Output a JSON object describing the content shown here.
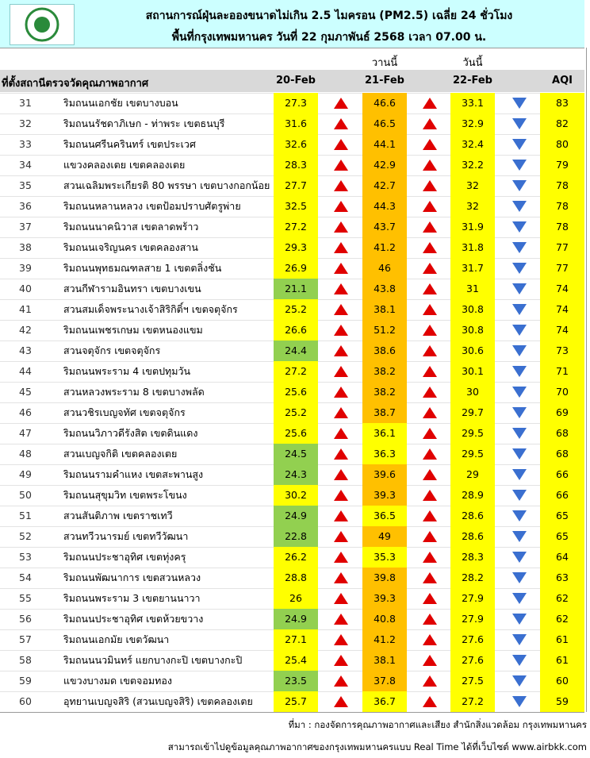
{
  "header": {
    "title": "สถานการณ์ฝุ่นละอองขนาดไม่เกิน 2.5 ไมครอน (PM2.5) เฉลี่ย 24 ชั่วโมง",
    "subtitle": "พื้นที่กรุงเทพมหานคร วันที่ 22 กุมภาพันธ์ 2568 เวลา 07.00 น.",
    "yesterday": "วานนี้",
    "today": "วันนี้"
  },
  "table": {
    "columns": [
      "ที่ตั้งสถานีตรวจวัดคุณภาพอากาศ",
      "20-Feb",
      "21-Feb",
      "22-Feb",
      "AQI"
    ],
    "rows": [
      [
        31,
        "ริมถนนเอกชัย เขตบางบอน",
        27.3,
        46.6,
        33.1,
        83
      ],
      [
        32,
        "ริมถนนรัชดาภิเษก - ท่าพระ เขตธนบุรี",
        31.6,
        46.5,
        32.9,
        82
      ],
      [
        33,
        "ริมถนนศรีนครินทร์ เขตประเวศ",
        32.6,
        44.1,
        32.4,
        80
      ],
      [
        34,
        "แขวงคลองเตย เขตคลองเตย",
        28.3,
        42.9,
        32.2,
        79
      ],
      [
        35,
        "สวนเฉลิมพระเกียรติ 80 พรรษา  เขตบางกอกน้อย",
        27.7,
        42.7,
        32,
        78
      ],
      [
        36,
        "ริมถนนหลานหลวง เขตป้อมปราบศัตรูพ่าย",
        32.5,
        44.3,
        32,
        78
      ],
      [
        37,
        "ริมถนนนาคนิวาส เขตลาดพร้าว",
        27.2,
        43.7,
        31.9,
        78
      ],
      [
        38,
        "ริมถนนเจริญนคร เขตคลองสาน",
        29.3,
        41.2,
        31.8,
        77
      ],
      [
        39,
        "ริมถนนพุทธมณฑลสาย 1 เขตตลิ่งชัน",
        26.9,
        46,
        31.7,
        77
      ],
      [
        40,
        "สวนกีฬารามอินทรา เขตบางเขน",
        21.1,
        43.8,
        31,
        74
      ],
      [
        41,
        "สวนสมเด็จพระนางเจ้าสิริกิติ์ฯ เขตจตุจักร",
        25.2,
        38.1,
        30.8,
        74
      ],
      [
        42,
        "ริมถนนเพชรเกษม เขตหนองแขม",
        26.6,
        51.2,
        30.8,
        74
      ],
      [
        43,
        "สวนจตุจักร เขตจตุจักร",
        24.4,
        38.6,
        30.6,
        73
      ],
      [
        44,
        "ริมถนนพระราม 4 เขตปทุมวัน",
        27.2,
        38.2,
        30.1,
        71
      ],
      [
        45,
        "สวนหลวงพระราม 8 เขตบางพลัด",
        25.6,
        38.2,
        30,
        70
      ],
      [
        46,
        "สวนวชิรเบญจทัศ เขตจตุจักร",
        25.2,
        38.7,
        29.7,
        69
      ],
      [
        47,
        "ริมถนนวิภาวดีรังสิต เขตดินแดง",
        25.6,
        36.1,
        29.5,
        68
      ],
      [
        48,
        "สวนเบญจกิติ  เขตคลองเตย",
        24.5,
        36.3,
        29.5,
        68
      ],
      [
        49,
        "ริมถนนรามคำแหง เขตสะพานสูง",
        24.3,
        39.6,
        29,
        66
      ],
      [
        50,
        "ริมถนนสุขุมวิท เขตพระโขนง",
        30.2,
        39.3,
        28.9,
        66
      ],
      [
        51,
        "สวนสันติภาพ เขตราชเทวี",
        24.9,
        36.5,
        28.6,
        65
      ],
      [
        52,
        "สวนทวีวนารมย์ เขตทวีวัฒนา",
        22.8,
        49,
        28.6,
        65
      ],
      [
        53,
        "ริมถนนประชาอุทิศ เขตทุ่งครุ",
        26.2,
        35.3,
        28.3,
        64
      ],
      [
        54,
        "ริมถนนพัฒนาการ เขตสวนหลวง",
        28.8,
        39.8,
        28.2,
        63
      ],
      [
        55,
        "ริมถนนพระราม 3 เขตยานนาวา",
        26,
        39.3,
        27.9,
        62
      ],
      [
        56,
        "ริมถนนประชาอุทิศ เขตห้วยขวาง",
        24.9,
        40.8,
        27.9,
        62
      ],
      [
        57,
        "ริมถนนเอกมัย เขตวัฒนา",
        27.1,
        41.2,
        27.6,
        61
      ],
      [
        58,
        "ริมถนนนวมินทร์ แยกบางกะปิ เขตบางกะปิ",
        25.4,
        38.1,
        27.6,
        61
      ],
      [
        59,
        "แขวงบางมด เขตจอมทอง",
        23.5,
        37.8,
        27.5,
        60
      ],
      [
        60,
        "อุทยานเบญจสิริ (สวนเบญจสิริ) เขตคลองเตย",
        25.7,
        36.7,
        27.2,
        59
      ]
    ],
    "fills": [
      [
        "#ffff00",
        "#ffc000"
      ],
      [
        "#ffff00",
        "#ffc000"
      ],
      [
        "#ffff00",
        "#ffc000"
      ],
      [
        "#ffff00",
        "#ffc000"
      ],
      [
        "#ffff00",
        "#ffc000"
      ],
      [
        "#ffff00",
        "#ffc000"
      ],
      [
        "#ffff00",
        "#ffc000"
      ],
      [
        "#ffff00",
        "#ffc000"
      ],
      [
        "#ffff00",
        "#ffc000"
      ],
      [
        "#92d050",
        "#ffc000"
      ],
      [
        "#ffff00",
        "#ffc000"
      ],
      [
        "#ffff00",
        "#ffc000"
      ],
      [
        "#92d050",
        "#ffc000"
      ],
      [
        "#ffff00",
        "#ffc000"
      ],
      [
        "#ffff00",
        "#ffc000"
      ],
      [
        "#ffff00",
        "#ffc000"
      ],
      [
        "#ffff00",
        "#ffff00"
      ],
      [
        "#92d050",
        "#ffff00"
      ],
      [
        "#92d050",
        "#ffc000"
      ],
      [
        "#ffff00",
        "#ffc000"
      ],
      [
        "#92d050",
        "#ffff00"
      ],
      [
        "#92d050",
        "#ffc000"
      ],
      [
        "#ffff00",
        "#ffff00"
      ],
      [
        "#ffff00",
        "#ffc000"
      ],
      [
        "#ffff00",
        "#ffc000"
      ],
      [
        "#92d050",
        "#ffc000"
      ],
      [
        "#ffff00",
        "#ffc000"
      ],
      [
        "#ffff00",
        "#ffc000"
      ],
      [
        "#92d050",
        "#ffc000"
      ],
      [
        "#ffff00",
        "#ffff00"
      ]
    ],
    "fill_today": "#ffff00",
    "fill_aqi": "#ffff00"
  },
  "footer": {
    "source": "ที่มา : กองจัดการคุณภาพอากาศและเสียง สำนักสิ่งแวดล้อม กรุงเทพมหานคร",
    "realtime": "สามารถเข้าไปดูข้อมูลคุณภาพอากาศของกรุงเทพมหานครแบบ Real Time ได้ที่เว็บไซต์ www.airbkk.com"
  }
}
